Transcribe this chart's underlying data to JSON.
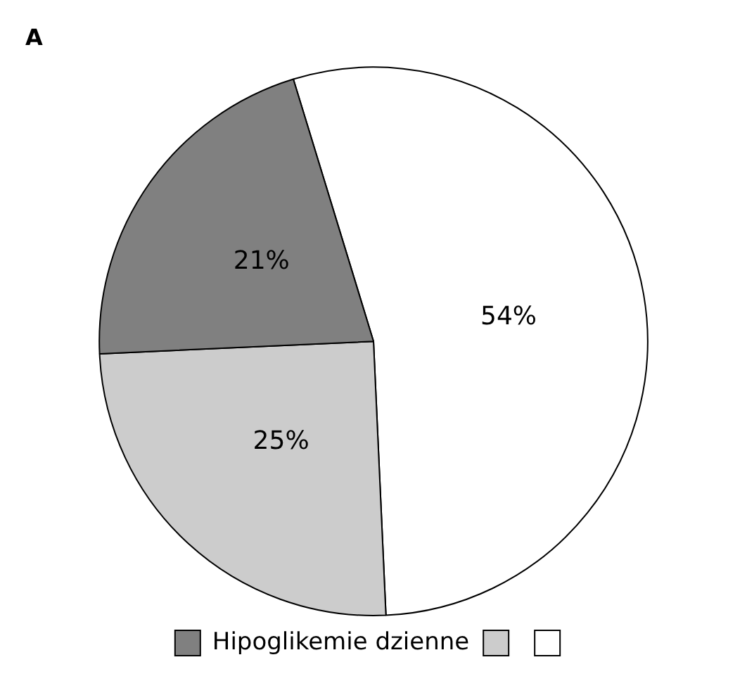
{
  "chart_data": {
    "type": "pie",
    "title": "A",
    "categories": [
      null,
      null,
      "Hipoglikemie dzienne"
    ],
    "values": [
      54,
      25,
      21
    ],
    "colors": [
      "#ffffff",
      "#cccccc",
      "#808080"
    ],
    "value_labels": [
      "54%",
      "25%",
      "21%"
    ],
    "legend": "bottom"
  }
}
